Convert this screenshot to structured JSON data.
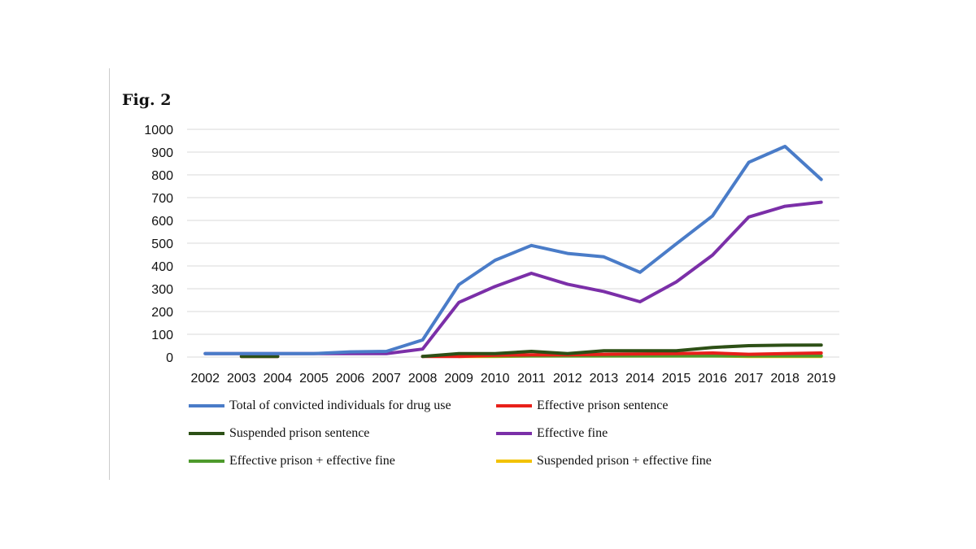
{
  "figure": {
    "label": "Fig. 2"
  },
  "chart_data": {
    "type": "line",
    "title": "",
    "xlabel": "",
    "ylabel": "",
    "ylim": [
      0,
      1000
    ],
    "yticks": [
      0,
      100,
      200,
      300,
      400,
      500,
      600,
      700,
      800,
      900,
      1000
    ],
    "categories": [
      "2002",
      "2003",
      "2004",
      "2005",
      "2006",
      "2007",
      "2008",
      "2009",
      "2010",
      "2011",
      "2012",
      "2013",
      "2014",
      "2015",
      "2016",
      "2017",
      "2018",
      "2019"
    ],
    "legend_position": "bottom",
    "grid": true,
    "series": [
      {
        "name": "Total of convicted individuals for drug use",
        "color": "#4a7cc8",
        "values": [
          15,
          15,
          15,
          15,
          23,
          25,
          75,
          318,
          425,
          490,
          455,
          440,
          372,
          497,
          620,
          855,
          925,
          780
        ]
      },
      {
        "name": "Effective prison sentence",
        "color": "#e8201a",
        "values": [
          null,
          3,
          3,
          null,
          null,
          null,
          3,
          3,
          8,
          10,
          10,
          12,
          14,
          15,
          18,
          12,
          15,
          18
        ]
      },
      {
        "name": "Suspended prison sentence",
        "color": "#2d5016",
        "values": [
          null,
          3,
          3,
          null,
          null,
          null,
          3,
          15,
          15,
          25,
          15,
          28,
          28,
          28,
          42,
          50,
          52,
          53
        ]
      },
      {
        "name": "Effective fine",
        "color": "#7b2fa8",
        "values": [
          15,
          15,
          15,
          15,
          15,
          15,
          35,
          240,
          310,
          368,
          320,
          288,
          243,
          330,
          448,
          615,
          662,
          680
        ]
      },
      {
        "name": "Effective prison + effective fine",
        "color": "#4e9a2c",
        "values": [
          null,
          null,
          null,
          null,
          null,
          null,
          null,
          5,
          5,
          5,
          5,
          5,
          5,
          5,
          5,
          5,
          5,
          5
        ]
      },
      {
        "name": "Suspended prison + effective fine",
        "color": "#f2c200",
        "values": [
          null,
          null,
          null,
          null,
          null,
          null,
          null,
          3,
          3,
          5,
          5,
          5,
          5,
          5,
          5,
          3,
          3,
          3
        ]
      }
    ]
  }
}
